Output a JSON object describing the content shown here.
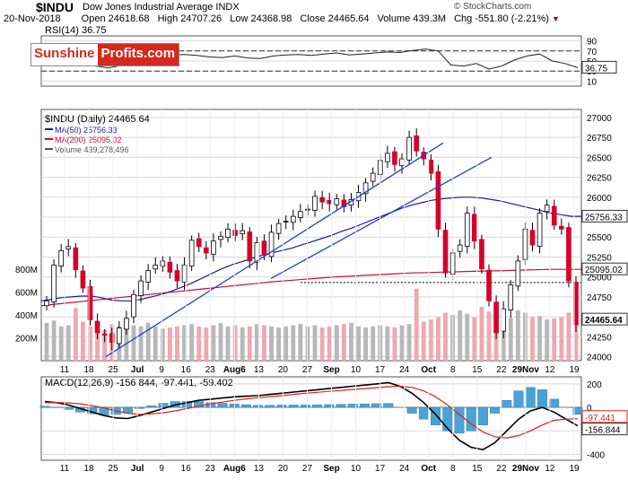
{
  "header": {
    "symbol": "$INDU",
    "name": "Dow Jones Industrial Average",
    "exchange": "INDX",
    "date": "20-Nov-2018",
    "open_label": "Open",
    "open": "24618.68",
    "high_label": "High",
    "high": "24707.26",
    "low_label": "Low",
    "low": "24368.98",
    "close_label": "Close",
    "close": "24465.64",
    "volume_label": "Volume",
    "volume": "439.3M",
    "chg_label": "Chg",
    "chg": "-551.80 (-2.21%)",
    "copyright": "© StockCharts.com"
  },
  "logo": {
    "part1": "Sunshine",
    "part2": "Profits.com"
  },
  "colors": {
    "up": "#ffffff",
    "down": "#d6002a",
    "ma50": "#1a1aa8",
    "ma200": "#c8102e",
    "trendline": "#1f3fd9",
    "macd": "#000000",
    "signal": "#e0201a",
    "histogram": "#4aa3d6",
    "volume_up": "#b8b8b8",
    "volume_down": "#f0a8b0",
    "grid": "#d8d8d8"
  },
  "chart_data": [
    {
      "panel": "rsi",
      "type": "line",
      "title": "RSI(14) 36.75",
      "ylim": [
        0,
        100
      ],
      "yticks": [
        10,
        30,
        50,
        70,
        90
      ],
      "reference_lines": [
        30,
        70
      ],
      "last_value_label": "36.75",
      "x": [
        "Jun 6",
        "Jun 10",
        "Jun 14",
        "Jun 18",
        "Jun 22",
        "Jun 26",
        "Jun 30",
        "Jul 4",
        "Jul 8",
        "Jul 12",
        "Jul 16",
        "Jul 20",
        "Jul 24",
        "Jul 28",
        "Aug 1",
        "Aug 5",
        "Aug 9",
        "Aug 13",
        "Aug 17",
        "Aug 21",
        "Aug 25",
        "Aug 29",
        "Sep 2",
        "Sep 6",
        "Sep 10",
        "Sep 14",
        "Sep 18",
        "Sep 22",
        "Sep 26",
        "Sep 30",
        "Oct 4",
        "Oct 8",
        "Oct 12",
        "Oct 16",
        "Oct 20",
        "Oct 24",
        "Oct 28",
        "Nov 1",
        "Nov 5",
        "Nov 9",
        "Nov 13",
        "Nov 17",
        "Nov 20"
      ],
      "values": [
        55,
        60,
        57,
        48,
        40,
        36,
        41,
        48,
        55,
        60,
        62,
        63,
        61,
        58,
        57,
        60,
        56,
        55,
        60,
        62,
        63,
        61,
        64,
        66,
        62,
        64,
        66,
        68,
        67,
        71,
        74,
        70,
        42,
        40,
        45,
        34,
        40,
        52,
        60,
        64,
        50,
        45,
        36.75
      ]
    },
    {
      "panel": "price",
      "type": "candlestick",
      "title": "$INDU (Daily) 24465.64",
      "ylim": [
        23950,
        27100
      ],
      "yticks": [
        24000,
        24250,
        24500,
        24750,
        25000,
        25250,
        25500,
        25750,
        26000,
        26250,
        26500,
        26750,
        27000
      ],
      "x_tick_labels": [
        "11",
        "18",
        "25",
        "Jul",
        "9",
        "16",
        "23",
        "Aug6",
        "13",
        "20",
        "27",
        "Sep",
        "10",
        "17",
        "24",
        "Oct",
        "8",
        "15",
        "22",
        "29Nov",
        "12",
        "19"
      ],
      "legend": [
        "MA(50) 25756.33",
        "MA(200) 25095.02",
        "Volume 439,278,496"
      ],
      "price_labels": [
        "25756.33",
        "25095.02",
        "24465.64"
      ],
      "support_level": 24930,
      "closes": [
        24700,
        25150,
        25330,
        25380,
        25090,
        24860,
        24460,
        24300,
        24270,
        24180,
        24360,
        24480,
        24780,
        24950,
        25080,
        25150,
        25200,
        25060,
        24950,
        25150,
        25460,
        25380,
        25300,
        25450,
        25510,
        25600,
        25520,
        25580,
        25200,
        25430,
        25270,
        25560,
        25670,
        25700,
        25760,
        25820,
        25850,
        26010,
        25940,
        25920,
        25980,
        25880,
        25970,
        26060,
        26180,
        26300,
        26460,
        26550,
        26410,
        26480,
        26750,
        26580,
        26480,
        26300,
        25600,
        25050,
        25300,
        25400,
        25800,
        25450,
        25100,
        24700,
        24300,
        24600,
        24900,
        25200,
        25600,
        25400,
        25800,
        25900,
        25650,
        25600,
        24950,
        24400
      ],
      "ma50": [
        24700,
        24720,
        24740,
        24750,
        24760,
        24760,
        24740,
        24710,
        24700,
        24700,
        24720,
        24750,
        24780,
        24820,
        24870,
        24920,
        24980,
        25040,
        25100,
        25150,
        25190,
        25230,
        25270,
        25300,
        25330,
        25360,
        25400,
        25440,
        25480,
        25520,
        25570,
        25610,
        25660,
        25710,
        25760,
        25810,
        25860,
        25900,
        25930,
        25960,
        25980,
        25990,
        26000,
        26000,
        25990,
        25970,
        25950,
        25920,
        25890,
        25860,
        25830,
        25800,
        25780,
        25760,
        25760
      ],
      "ma200": [
        24640,
        24660,
        24680,
        24700,
        24720,
        24740,
        24760,
        24780,
        24800,
        24820,
        24840,
        24860,
        24880,
        24900,
        24920,
        24940,
        24955,
        24970,
        24985,
        25000,
        25010,
        25020,
        25030,
        25040,
        25050,
        25055,
        25060,
        25065,
        25070,
        25075,
        25080,
        25085,
        25090,
        25095,
        25095,
        25095
      ],
      "trendlines": [
        {
          "from": [
            "Jun 25",
            24000
          ],
          "to": [
            "Oct 9",
            26680
          ]
        },
        {
          "from": [
            "Aug 10",
            24980
          ],
          "to": [
            "Oct 26",
            26500
          ]
        }
      ]
    },
    {
      "panel": "volume",
      "type": "bar",
      "ylim": [
        0,
        800
      ],
      "yticks": [
        200,
        400,
        600,
        800
      ],
      "yticklabels": [
        "200M",
        "400M",
        "600M",
        "800M"
      ],
      "values": [
        330,
        350,
        300,
        310,
        460,
        340,
        300,
        290,
        270,
        320,
        300,
        290,
        310,
        300,
        330,
        300,
        280,
        290,
        300,
        310,
        320,
        300,
        290,
        310,
        330,
        300,
        310,
        290,
        300,
        320,
        310,
        300,
        290,
        300,
        310,
        320,
        300,
        310,
        290,
        300,
        310,
        320,
        330,
        300,
        290,
        300,
        310,
        300,
        290,
        310,
        320,
        630,
        340,
        360,
        380,
        420,
        400,
        440,
        410,
        380,
        470,
        430,
        440,
        360,
        370,
        440,
        420,
        380,
        390,
        360,
        370,
        380,
        420,
        440
      ]
    },
    {
      "panel": "macd",
      "type": "line",
      "title": "MACD(12,26,9) -156.844, -97.441, -59.402",
      "ylim": [
        -450,
        260
      ],
      "yticks": [
        200,
        0,
        -200,
        -400
      ],
      "x_tick_labels": [
        "11",
        "18",
        "25",
        "Jul",
        "9",
        "16",
        "23",
        "Aug6",
        "13",
        "20",
        "27",
        "Sep",
        "10",
        "17",
        "24",
        "Oct",
        "8",
        "15",
        "22",
        "29Nov",
        "12",
        "19"
      ],
      "series": [
        {
          "name": "MACD",
          "values": [
            50,
            40,
            20,
            -10,
            -40,
            -70,
            -90,
            -95,
            -70,
            -40,
            -10,
            20,
            40,
            60,
            70,
            80,
            90,
            95,
            100,
            110,
            120,
            130,
            140,
            150,
            160,
            170,
            180,
            190,
            200,
            210,
            180,
            120,
            40,
            -60,
            -180,
            -280,
            -340,
            -360,
            -300,
            -200,
            -100,
            -30,
            0,
            -40,
            -100,
            -156.844
          ]
        },
        {
          "name": "Signal",
          "values": [
            40,
            42,
            38,
            30,
            15,
            -5,
            -30,
            -50,
            -60,
            -55,
            -45,
            -30,
            -10,
            10,
            30,
            45,
            60,
            72,
            82,
            92,
            100,
            110,
            120,
            128,
            136,
            144,
            152,
            160,
            168,
            176,
            180,
            170,
            140,
            90,
            20,
            -60,
            -140,
            -210,
            -250,
            -260,
            -240,
            -200,
            -150,
            -110,
            -100,
            -97.441
          ]
        }
      ],
      "histogram": [
        10,
        -2,
        -18,
        -40,
        -55,
        -65,
        -60,
        -45,
        -10,
        15,
        35,
        50,
        50,
        50,
        40,
        35,
        30,
        23,
        18,
        18,
        20,
        20,
        20,
        22,
        24,
        26,
        28,
        30,
        32,
        34,
        0,
        -50,
        -100,
        -150,
        -200,
        -220,
        -200,
        -150,
        -50,
        60,
        140,
        170,
        150,
        70,
        0,
        -59.402
      ],
      "last_value_labels": [
        "-97.441",
        "-156.844"
      ]
    }
  ]
}
